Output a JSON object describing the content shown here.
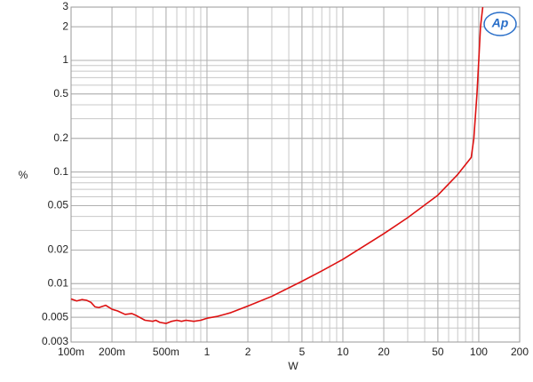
{
  "chart_data": {
    "type": "line",
    "logo": "Ap",
    "x_label": "W",
    "y_label": "%",
    "x": [
      0.1,
      0.11,
      0.12,
      0.13,
      0.14,
      0.15,
      0.16,
      0.18,
      0.2,
      0.22,
      0.25,
      0.28,
      0.3,
      0.35,
      0.4,
      0.42,
      0.45,
      0.5,
      0.55,
      0.6,
      0.65,
      0.7,
      0.8,
      0.9,
      1,
      1.2,
      1.5,
      2,
      3,
      5,
      7,
      10,
      20,
      30,
      50,
      70,
      88,
      92,
      97,
      100,
      103,
      107
    ],
    "series": [
      {
        "color": "#dd1111",
        "values": [
          0.0073,
          0.007,
          0.0072,
          0.0071,
          0.0068,
          0.0062,
          0.0061,
          0.0064,
          0.0059,
          0.0057,
          0.0053,
          0.0054,
          0.0052,
          0.0047,
          0.0046,
          0.0047,
          0.0045,
          0.0044,
          0.0046,
          0.0047,
          0.0046,
          0.0047,
          0.0046,
          0.0047,
          0.0049,
          0.0051,
          0.0055,
          0.0063,
          0.0077,
          0.0105,
          0.013,
          0.0165,
          0.028,
          0.039,
          0.062,
          0.095,
          0.135,
          0.2,
          0.5,
          1.0,
          2.0,
          3.0
        ]
      }
    ],
    "xlim": [
      0.1,
      200
    ],
    "ylim": [
      0.003,
      3
    ],
    "log_x": true,
    "log_y": true,
    "grid": true,
    "minor_grid": true,
    "xticks": [
      {
        "value": 0.1,
        "label": "100m"
      },
      {
        "value": 0.2,
        "label": "200m"
      },
      {
        "value": 0.5,
        "label": "500m"
      },
      1,
      2,
      5,
      10,
      20,
      50,
      100,
      200
    ],
    "yticks": [
      0.003,
      0.005,
      0.01,
      0.02,
      0.05,
      0.1,
      0.2,
      0.5,
      1,
      2,
      3
    ]
  }
}
